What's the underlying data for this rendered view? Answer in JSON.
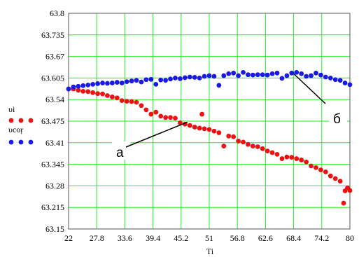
{
  "chart_data": {
    "type": "scatter",
    "xlabel": "Ti",
    "ylabel": "",
    "title": "",
    "xlim": [
      22,
      80
    ],
    "ylim": [
      63.15,
      63.8
    ],
    "grid": true,
    "legend_position": "left",
    "x_ticks": [
      "22",
      "27.8",
      "33.6",
      "39.4",
      "45.2",
      "51",
      "56.8",
      "62.6",
      "68.4",
      "74.2",
      "80"
    ],
    "y_ticks": [
      "63.15",
      "63.215",
      "63.28",
      "63.345",
      "63.41",
      "63.475",
      "63.54",
      "63.605",
      "63.67",
      "63.735",
      "63.8"
    ],
    "colors": {
      "grid": "#22ee22",
      "series_red": "#ee1111",
      "series_blue": "#1a1ae6"
    },
    "series": [
      {
        "name": "υi",
        "color": "#ee1111",
        "points": [
          [
            22,
            63.572
          ],
          [
            23,
            63.572
          ],
          [
            24,
            63.568
          ],
          [
            25,
            63.565
          ],
          [
            26,
            63.564
          ],
          [
            27,
            63.561
          ],
          [
            28,
            63.558
          ],
          [
            29,
            63.557
          ],
          [
            30,
            63.552
          ],
          [
            31,
            63.548
          ],
          [
            32,
            63.545
          ],
          [
            33,
            63.537
          ],
          [
            34,
            63.535
          ],
          [
            35,
            63.534
          ],
          [
            36,
            63.532
          ],
          [
            37,
            63.522
          ],
          [
            38,
            63.509
          ],
          [
            39,
            63.496
          ],
          [
            40,
            63.502
          ],
          [
            41,
            63.49
          ],
          [
            42,
            63.486
          ],
          [
            43,
            63.486
          ],
          [
            44,
            63.484
          ],
          [
            45,
            63.47
          ],
          [
            46,
            63.466
          ],
          [
            47,
            63.462
          ],
          [
            48,
            63.457
          ],
          [
            49,
            63.454
          ],
          [
            49.5,
            63.496
          ],
          [
            50,
            63.452
          ],
          [
            51,
            63.45
          ],
          [
            52,
            63.445
          ],
          [
            53,
            63.44
          ],
          [
            54,
            63.4
          ],
          [
            55,
            63.43
          ],
          [
            56,
            63.428
          ],
          [
            57,
            63.415
          ],
          [
            58,
            63.412
          ],
          [
            59,
            63.405
          ],
          [
            60,
            63.4
          ],
          [
            61,
            63.398
          ],
          [
            62,
            63.392
          ],
          [
            63,
            63.385
          ],
          [
            64,
            63.38
          ],
          [
            65,
            63.375
          ],
          [
            66,
            63.362
          ],
          [
            67,
            63.367
          ],
          [
            68,
            63.366
          ],
          [
            69,
            63.362
          ],
          [
            70,
            63.358
          ],
          [
            71,
            63.352
          ],
          [
            72,
            63.34
          ],
          [
            73,
            63.335
          ],
          [
            74,
            63.328
          ],
          [
            75,
            63.322
          ],
          [
            76,
            63.31
          ],
          [
            77,
            63.302
          ],
          [
            78,
            63.294
          ],
          [
            79,
            63.265
          ],
          [
            79.5,
            63.274
          ],
          [
            80,
            63.266
          ],
          [
            78.7,
            63.228
          ]
        ]
      },
      {
        "name": "υcoŗ",
        "color": "#1a1ae6",
        "points": [
          [
            22,
            63.572
          ],
          [
            23,
            63.578
          ],
          [
            24,
            63.58
          ],
          [
            25,
            63.582
          ],
          [
            26,
            63.584
          ],
          [
            27,
            63.586
          ],
          [
            28,
            63.588
          ],
          [
            29,
            63.59
          ],
          [
            30,
            63.589
          ],
          [
            31,
            63.59
          ],
          [
            32,
            63.592
          ],
          [
            33,
            63.59
          ],
          [
            34,
            63.594
          ],
          [
            35,
            63.596
          ],
          [
            36,
            63.598
          ],
          [
            37,
            63.593
          ],
          [
            38,
            63.6
          ],
          [
            39,
            63.601
          ],
          [
            40,
            63.586
          ],
          [
            41,
            63.599
          ],
          [
            42,
            63.598
          ],
          [
            43,
            63.602
          ],
          [
            44,
            63.605
          ],
          [
            45,
            63.603
          ],
          [
            46,
            63.606
          ],
          [
            47,
            63.608
          ],
          [
            48,
            63.607
          ],
          [
            49,
            63.605
          ],
          [
            50,
            63.61
          ],
          [
            51,
            63.612
          ],
          [
            52,
            63.61
          ],
          [
            53,
            63.583
          ],
          [
            54,
            63.612
          ],
          [
            55,
            63.618
          ],
          [
            56,
            63.62
          ],
          [
            57,
            63.612
          ],
          [
            58,
            63.622
          ],
          [
            59,
            63.615
          ],
          [
            60,
            63.614
          ],
          [
            61,
            63.615
          ],
          [
            62,
            63.615
          ],
          [
            63,
            63.614
          ],
          [
            64,
            63.618
          ],
          [
            65,
            63.62
          ],
          [
            66,
            63.604
          ],
          [
            67,
            63.612
          ],
          [
            68,
            63.62
          ],
          [
            69,
            63.622
          ],
          [
            70,
            63.618
          ],
          [
            71,
            63.61
          ],
          [
            72,
            63.612
          ],
          [
            73,
            63.62
          ],
          [
            74,
            63.614
          ],
          [
            75,
            63.608
          ],
          [
            76,
            63.605
          ],
          [
            77,
            63.6
          ],
          [
            78,
            63.598
          ],
          [
            79,
            63.59
          ],
          [
            80,
            63.585
          ]
        ]
      }
    ],
    "annotations": [
      {
        "label": "a",
        "target": [
          46.5,
          63.472
        ]
      },
      {
        "label": "б",
        "target": [
          68.4,
          63.618
        ]
      }
    ]
  }
}
